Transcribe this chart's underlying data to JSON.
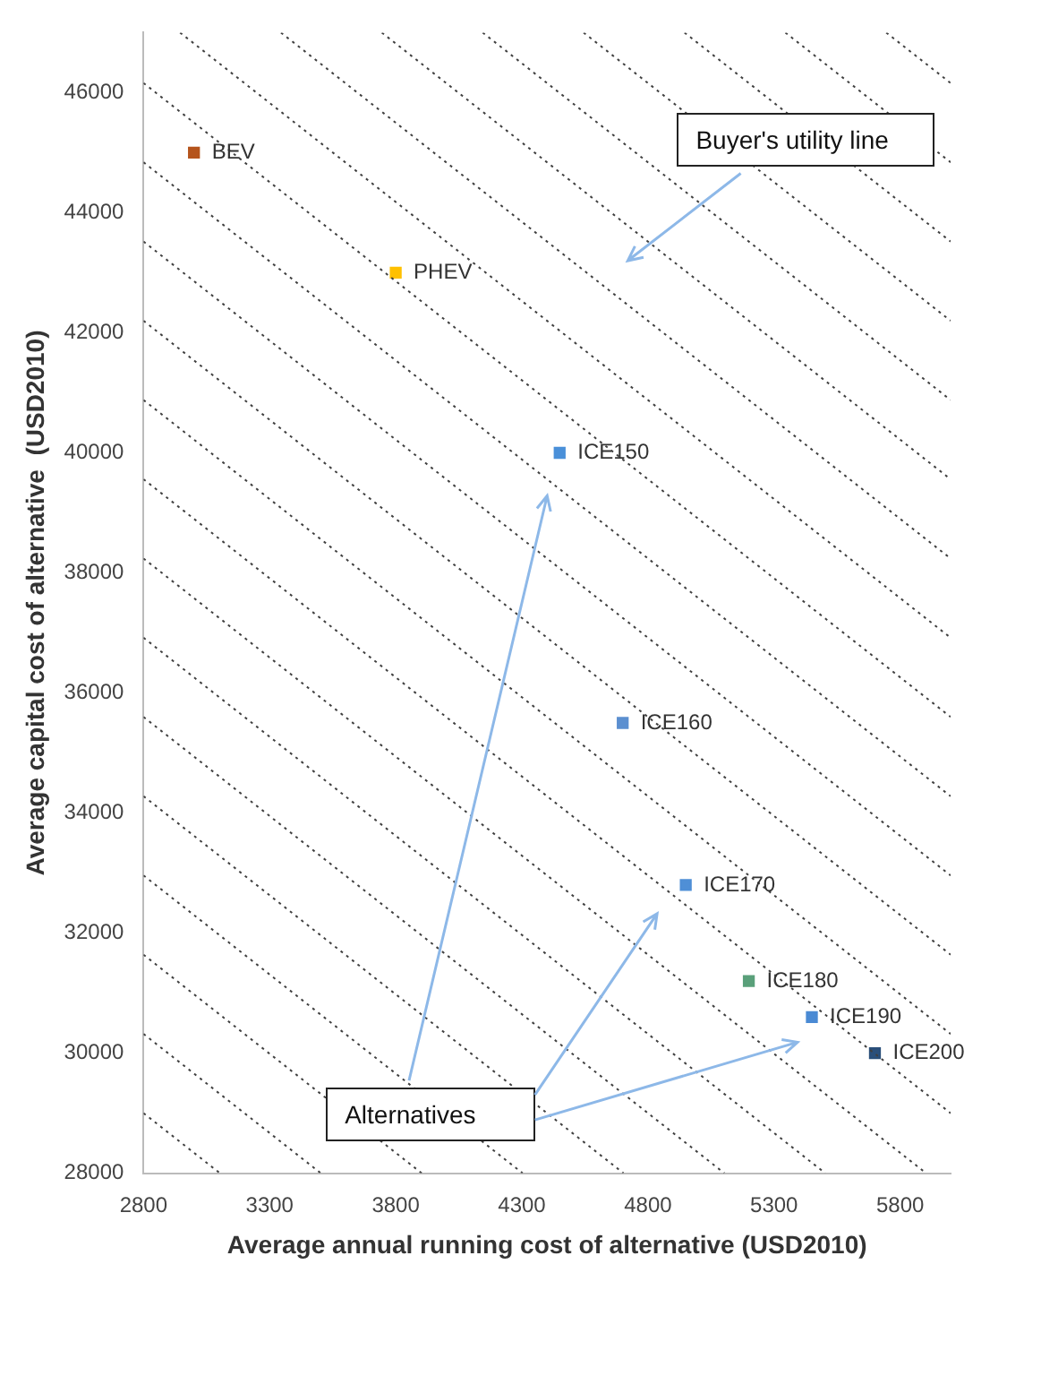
{
  "chart_data": {
    "type": "scatter",
    "xlabel": "Average annual running cost of alternative (USD2010)",
    "ylabel": "Average capital cost of alternative  (USD2010)",
    "xlim": [
      2800,
      6000
    ],
    "ylim": [
      28000,
      47000
    ],
    "xticks": [
      2800,
      3300,
      3800,
      4300,
      4800,
      5300,
      5800
    ],
    "yticks": [
      28000,
      30000,
      32000,
      34000,
      36000,
      38000,
      40000,
      42000,
      44000,
      46000
    ],
    "grid": false,
    "legend": false,
    "marker": "square",
    "annotations": [
      "Buyer's utility line",
      "Alternatives"
    ],
    "series": [
      {
        "type": "line",
        "color": "#404040",
        "line_style": "dotted",
        "marker": "none",
        "x": [
          2800,
          3103
        ],
        "values": [
          29000,
          28000
        ]
      },
      {
        "type": "line",
        "color": "#404040",
        "line_style": "dotted",
        "marker": "none",
        "x": [
          2800,
          3503
        ],
        "values": [
          30320,
          28000
        ]
      },
      {
        "type": "line",
        "color": "#404040",
        "line_style": "dotted",
        "marker": "none",
        "x": [
          2800,
          3903
        ],
        "values": [
          31640,
          28000
        ]
      },
      {
        "type": "line",
        "color": "#404040",
        "line_style": "dotted",
        "marker": "none",
        "x": [
          2800,
          4303
        ],
        "values": [
          32960,
          28000
        ]
      },
      {
        "type": "line",
        "color": "#404040",
        "line_style": "dotted",
        "marker": "none",
        "x": [
          2800,
          4703
        ],
        "values": [
          34280,
          28000
        ]
      },
      {
        "type": "line",
        "color": "#404040",
        "line_style": "dotted",
        "marker": "none",
        "x": [
          2800,
          5103
        ],
        "values": [
          35600,
          28000
        ]
      },
      {
        "type": "line",
        "color": "#404040",
        "line_style": "dotted",
        "marker": "none",
        "x": [
          2800,
          5503
        ],
        "values": [
          36920,
          28000
        ]
      },
      {
        "type": "line",
        "color": "#404040",
        "line_style": "dotted",
        "marker": "none",
        "x": [
          2800,
          5903
        ],
        "values": [
          38240,
          28000
        ]
      },
      {
        "type": "line",
        "color": "#404040",
        "line_style": "dotted",
        "marker": "none",
        "x": [
          2800,
          6000
        ],
        "values": [
          39560,
          29000
        ]
      },
      {
        "type": "line",
        "color": "#404040",
        "line_style": "dotted",
        "marker": "none",
        "x": [
          2800,
          6000
        ],
        "values": [
          40880,
          30320
        ]
      },
      {
        "type": "line",
        "color": "#404040",
        "line_style": "dotted",
        "marker": "none",
        "x": [
          2800,
          6000
        ],
        "values": [
          42200,
          31640
        ]
      },
      {
        "type": "line",
        "color": "#404040",
        "line_style": "dotted",
        "marker": "none",
        "x": [
          2800,
          6000
        ],
        "values": [
          43520,
          32960
        ]
      },
      {
        "type": "line",
        "color": "#404040",
        "line_style": "dotted",
        "marker": "none",
        "x": [
          2800,
          6000
        ],
        "values": [
          44840,
          34280
        ]
      },
      {
        "type": "line",
        "color": "#404040",
        "line_style": "dotted",
        "marker": "none",
        "x": [
          2800,
          6000
        ],
        "values": [
          46160,
          35600
        ]
      },
      {
        "type": "line",
        "color": "#404040",
        "line_style": "dotted",
        "marker": "none",
        "x": [
          2945,
          6000
        ],
        "values": [
          47000,
          36920
        ]
      },
      {
        "type": "line",
        "color": "#404040",
        "line_style": "dotted",
        "marker": "none",
        "x": [
          3345,
          6000
        ],
        "values": [
          47000,
          38240
        ]
      },
      {
        "type": "line",
        "color": "#404040",
        "line_style": "dotted",
        "marker": "none",
        "x": [
          3745,
          6000
        ],
        "values": [
          47000,
          39560
        ]
      },
      {
        "type": "line",
        "color": "#404040",
        "line_style": "dotted",
        "marker": "none",
        "x": [
          4145,
          6000
        ],
        "values": [
          47000,
          40880
        ]
      },
      {
        "type": "line",
        "color": "#404040",
        "line_style": "dotted",
        "marker": "none",
        "x": [
          4545,
          6000
        ],
        "values": [
          47000,
          42200
        ]
      },
      {
        "type": "line",
        "color": "#404040",
        "line_style": "dotted",
        "marker": "none",
        "x": [
          4945,
          6000
        ],
        "values": [
          47000,
          43520
        ]
      },
      {
        "type": "line",
        "color": "#404040",
        "line_style": "dotted",
        "marker": "none",
        "x": [
          5345,
          6000
        ],
        "values": [
          47000,
          44840
        ]
      },
      {
        "type": "line",
        "color": "#404040",
        "line_style": "dotted",
        "marker": "none",
        "x": [
          5745,
          6000
        ],
        "values": [
          47000,
          46160
        ]
      },
      {
        "type": "scatter",
        "name": "BEV",
        "color": "#b5541c",
        "x": [
          3000
        ],
        "values": [
          45000
        ]
      },
      {
        "type": "scatter",
        "name": "PHEV",
        "color": "#ffc000",
        "x": [
          3800
        ],
        "values": [
          43000
        ]
      },
      {
        "type": "scatter",
        "name": "ICE150",
        "color": "#4a90d9",
        "x": [
          4450
        ],
        "values": [
          40000
        ]
      },
      {
        "type": "scatter",
        "name": "ICE160",
        "color": "#5b8fd0",
        "x": [
          4700
        ],
        "values": [
          35500
        ]
      },
      {
        "type": "scatter",
        "name": "ICE170",
        "color": "#4f8fd6",
        "x": [
          4950
        ],
        "values": [
          32800
        ]
      },
      {
        "type": "scatter",
        "name": "ICE180",
        "color": "#5aa07a",
        "x": [
          5200
        ],
        "values": [
          31200
        ]
      },
      {
        "type": "scatter",
        "name": "ICE190",
        "color": "#4a8ad4",
        "x": [
          5450
        ],
        "values": [
          30600
        ]
      },
      {
        "type": "scatter",
        "name": "ICE200",
        "color": "#2a4f7a",
        "x": [
          5700
        ],
        "values": [
          30000
        ]
      }
    ]
  }
}
